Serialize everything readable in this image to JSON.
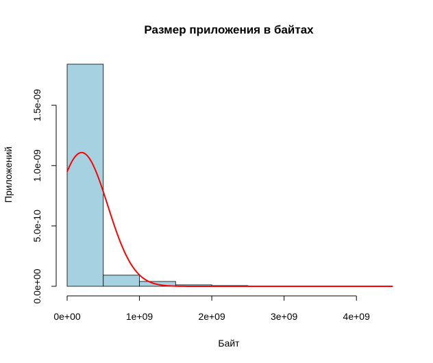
{
  "chart_data": {
    "type": "histogram",
    "title": "Размер приложения в байтах",
    "xlabel": "Байт",
    "ylabel": "Приложений",
    "xlim": [
      0,
      4500000000
    ],
    "ylim": [
      0,
      1.85e-09
    ],
    "bin_width": 500000000,
    "bins": [
      {
        "start": 0,
        "end": 500000000,
        "density": 1.84e-09
      },
      {
        "start": 500000000,
        "end": 1000000000,
        "density": 9.2e-11
      },
      {
        "start": 1000000000,
        "end": 1500000000,
        "density": 4e-11
      },
      {
        "start": 1500000000,
        "end": 2000000000,
        "density": 1.2e-11
      },
      {
        "start": 2000000000,
        "end": 2500000000,
        "density": 6e-12
      },
      {
        "start": 2500000000,
        "end": 3000000000,
        "density": 2e-12
      },
      {
        "start": 3000000000,
        "end": 3500000000,
        "density": 1e-12
      },
      {
        "start": 3500000000,
        "end": 4000000000,
        "density": 5e-13
      },
      {
        "start": 4000000000,
        "end": 4500000000,
        "density": 5e-13
      }
    ],
    "bar_color": "#a6d1e0",
    "curve": {
      "type": "normal",
      "mean": 200000000,
      "sd": 360000000,
      "color": "#ff0000"
    },
    "x_ticks": [
      {
        "value": 0,
        "label": "0e+00"
      },
      {
        "value": 1000000000,
        "label": "1e+09"
      },
      {
        "value": 2000000000,
        "label": "2e+09"
      },
      {
        "value": 3000000000,
        "label": "3e+09"
      },
      {
        "value": 4000000000,
        "label": "4e+09"
      }
    ],
    "y_ticks": [
      {
        "value": 0,
        "label": "0.0e+00"
      },
      {
        "value": 5e-10,
        "label": "5.0e-10"
      },
      {
        "value": 1e-09,
        "label": "1.0e-09"
      },
      {
        "value": 1.5e-09,
        "label": "1.5e-09"
      }
    ]
  }
}
